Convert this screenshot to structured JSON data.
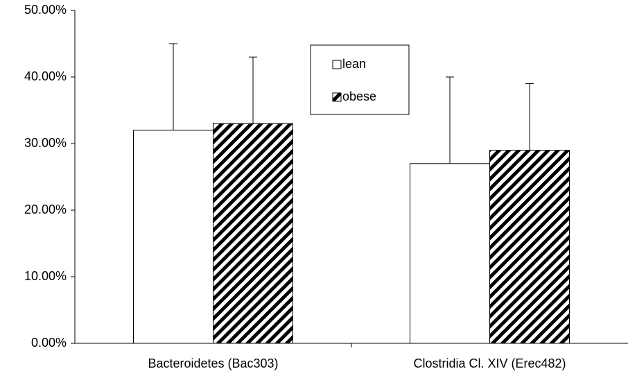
{
  "chart_data": {
    "type": "bar",
    "categories": [
      "Bacteroidetes (Bac303)",
      "Clostridia Cl. XIV (Erec482)"
    ],
    "series": [
      {
        "name": "lean",
        "color": "#ffffff",
        "values": [
          32,
          27
        ],
        "errors": [
          13,
          13
        ]
      },
      {
        "name": "obese",
        "color": "#000000",
        "pattern": "diagonal-stripes",
        "values": [
          33,
          29
        ],
        "errors": [
          10,
          10
        ]
      }
    ],
    "ylim": [
      0,
      50
    ],
    "yticks": [
      {
        "value": 0,
        "label": "0.00%"
      },
      {
        "value": 10,
        "label": "10.00%"
      },
      {
        "value": 20,
        "label": "20.00%"
      },
      {
        "value": 30,
        "label": "30.00%"
      },
      {
        "value": 40,
        "label": "40.00%"
      },
      {
        "value": 50,
        "label": "50.00%"
      }
    ],
    "grid": false,
    "legend": "top-center"
  }
}
